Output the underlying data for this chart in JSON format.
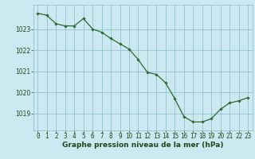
{
  "x": [
    0,
    1,
    2,
    3,
    4,
    5,
    6,
    7,
    8,
    9,
    10,
    11,
    12,
    13,
    14,
    15,
    16,
    17,
    18,
    19,
    20,
    21,
    22,
    23
  ],
  "y": [
    1023.75,
    1023.65,
    1023.25,
    1023.15,
    1023.15,
    1023.5,
    1023.0,
    1022.85,
    1022.55,
    1022.3,
    1022.05,
    1021.55,
    1020.95,
    1020.85,
    1020.45,
    1019.7,
    1018.85,
    1018.6,
    1018.6,
    1018.75,
    1019.2,
    1019.5,
    1019.6,
    1019.75
  ],
  "line_color": "#2d6a2d",
  "marker": "D",
  "marker_size": 1.8,
  "bg_color": "#cce8f0",
  "grid_color": "#88bbcc",
  "xlabel": "Graphe pression niveau de la mer (hPa)",
  "xlabel_color": "#1a4a1a",
  "xlabel_fontsize": 6.5,
  "tick_color": "#1a4a1a",
  "tick_fontsize": 5.5,
  "ylim": [
    1018.2,
    1024.15
  ],
  "yticks": [
    1019,
    1020,
    1021,
    1022,
    1023
  ],
  "xlim": [
    -0.5,
    23.5
  ],
  "xticks": [
    0,
    1,
    2,
    3,
    4,
    5,
    6,
    7,
    8,
    9,
    10,
    11,
    12,
    13,
    14,
    15,
    16,
    17,
    18,
    19,
    20,
    21,
    22,
    23
  ],
  "line_width": 0.9
}
